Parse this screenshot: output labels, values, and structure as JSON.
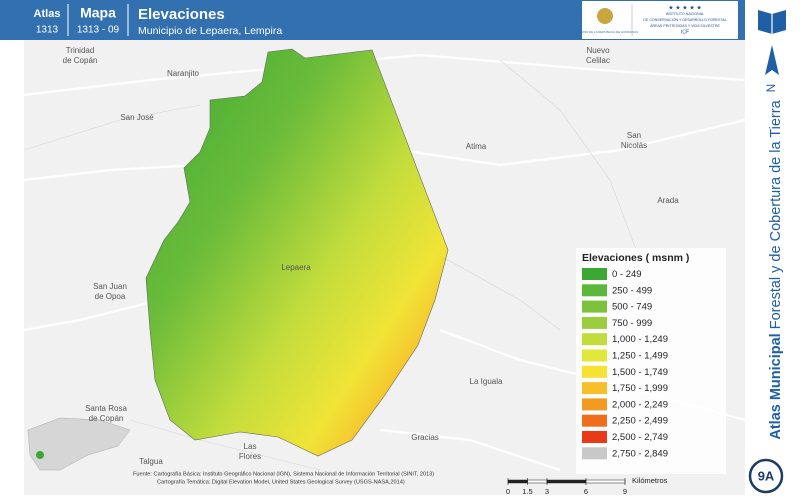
{
  "header": {
    "atlas_label": "Atlas",
    "atlas_number": "1313",
    "map_label": "Mapa",
    "map_number": "1313 - 09",
    "title": "Elevaciones",
    "subtitle": "Municipio de Lepaera, Lempira",
    "logo_left": "GOBIERNO DE LA REPÚBLICA DE HONDURAS",
    "logo_right": [
      "INSTITUTO NACIONAL",
      "DE CONSERVACIÓN Y DESARROLLO FORESTAL",
      "ÁREAS PROTEGIDAS Y VIDA SILVESTRE",
      "ICF"
    ]
  },
  "sidebar": {
    "title_bold": "Atlas Municipal",
    "title_rest": "Forestal y de Cobertura de la Tierra",
    "north": "N",
    "page": "9A"
  },
  "places": [
    {
      "lines": [
        "Trinidad",
        "de Copán"
      ]
    },
    {
      "lines": [
        "Naranjito"
      ]
    },
    {
      "lines": [
        "San José"
      ]
    },
    {
      "lines": [
        "Nuevo",
        "Celilac"
      ]
    },
    {
      "lines": [
        "San",
        "Nicolás"
      ]
    },
    {
      "lines": [
        "Atima"
      ]
    },
    {
      "lines": [
        "Arada"
      ]
    },
    {
      "lines": [
        "Lepaera"
      ]
    },
    {
      "lines": [
        "San Juan",
        "de Opoa"
      ]
    },
    {
      "lines": [
        "La Iguala"
      ]
    },
    {
      "lines": [
        "Santa Rosa",
        "de Copán"
      ]
    },
    {
      "lines": [
        "Gracias"
      ]
    },
    {
      "lines": [
        "Las",
        "Flores"
      ]
    },
    {
      "lines": [
        "Talgua"
      ]
    }
  ],
  "legend": {
    "title": "Elevaciones ( msnm )",
    "items": [
      {
        "label": "0 - 249",
        "color": "#3aa832"
      },
      {
        "label": "250 - 499",
        "color": "#5cb83a"
      },
      {
        "label": "500 - 749",
        "color": "#7cc23c"
      },
      {
        "label": "750 - 999",
        "color": "#9ccd3e"
      },
      {
        "label": "1,000 - 1,249",
        "color": "#c2dc3c"
      },
      {
        "label": "1,250 - 1,499",
        "color": "#e2e83a"
      },
      {
        "label": "1,500 - 1,749",
        "color": "#f5e232"
      },
      {
        "label": "1,750 - 1,999",
        "color": "#f7c02a"
      },
      {
        "label": "2,000 - 2,249",
        "color": "#f39a22"
      },
      {
        "label": "2,250 - 2,499",
        "color": "#ef6e1c"
      },
      {
        "label": "2,500 - 2,749",
        "color": "#e83a16"
      },
      {
        "label": "2,750 - 2,849",
        "color": "#c8c8c8"
      }
    ]
  },
  "source": {
    "line1": "Fuente: Cartografía Básica: Instituto Geográfico Nacional (IGN), Sistema Nacional de Información Territorial (SINIT, 2013)",
    "line2": "Cartografía Temática: Digital Elevation Model, United States Geological Survey (USGS-NASA,2014)"
  },
  "scale_bar": {
    "ticks": [
      0,
      1.5,
      3,
      6,
      9
    ],
    "unit": "Kilómetros"
  }
}
